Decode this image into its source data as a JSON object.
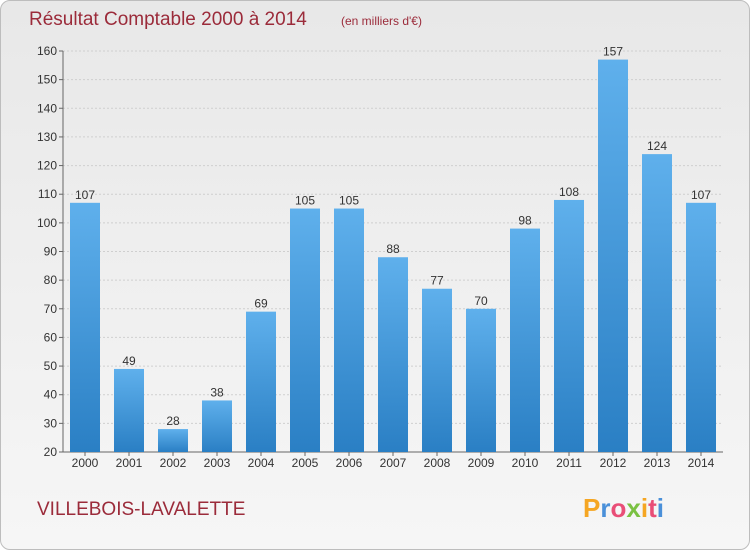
{
  "chart_data": {
    "type": "bar",
    "title": "Résultat Comptable 2000 à 2014",
    "subtitle": "(en milliers d'€)",
    "categories": [
      "2000",
      "2001",
      "2002",
      "2003",
      "2004",
      "2005",
      "2006",
      "2007",
      "2008",
      "2009",
      "2010",
      "2011",
      "2012",
      "2013",
      "2014"
    ],
    "values": [
      107,
      49,
      28,
      38,
      69,
      105,
      105,
      88,
      77,
      70,
      98,
      108,
      157,
      124,
      107
    ],
    "ylim": [
      20,
      160
    ],
    "yticks": [
      20,
      30,
      40,
      50,
      60,
      70,
      80,
      90,
      100,
      110,
      120,
      130,
      140,
      150,
      160
    ],
    "grid": true,
    "bar_color": "#3a8fd4"
  },
  "footer": {
    "commune": "VILLEBOIS-LAVALETTE",
    "logo_letters": [
      "P",
      "r",
      "o",
      "x",
      "i",
      "t",
      "i"
    ],
    "logo_colors": [
      "#f5a623",
      "#4a90d9",
      "#e94e77",
      "#7ac142",
      "#f5a623",
      "#e94e77",
      "#4a90d9"
    ]
  }
}
